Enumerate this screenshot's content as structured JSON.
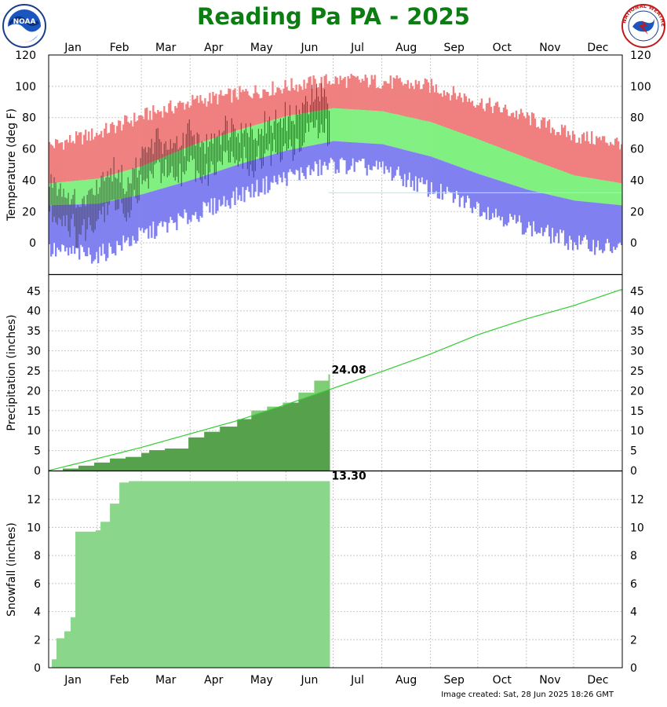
{
  "title": "Reading Pa PA - 2025",
  "footer": "Image created: Sat, 28 Jun 2025 18:26 GMT",
  "logos": {
    "left": "noaa-logo",
    "right": "nws-logo"
  },
  "colors": {
    "title": "#0b7d12",
    "record_high": "#f08080",
    "normal_band": "#80f080",
    "record_low": "#8080f0",
    "observed_temp": "#3f3f3f",
    "precip_observed": "#56a14c",
    "precip_excess": "#b8a39c",
    "snow": "#8ad68a",
    "normal_line": "#33cc33"
  },
  "months": [
    "Jan",
    "Feb",
    "Mar",
    "Apr",
    "May",
    "Jun",
    "Jul",
    "Aug",
    "Sep",
    "Oct",
    "Nov",
    "Dec"
  ],
  "chart_data": [
    {
      "type": "area",
      "ylabel": "Temperature (deg F)",
      "ylim": [
        -20,
        120
      ],
      "yticks": [
        0,
        20,
        40,
        60,
        80,
        100,
        120
      ],
      "grid": true,
      "x_unit": "day of year",
      "normal_high": [
        [
          1,
          38
        ],
        [
          32,
          41
        ],
        [
          60,
          49
        ],
        [
          91,
          62
        ],
        [
          121,
          72
        ],
        [
          152,
          81
        ],
        [
          182,
          86
        ],
        [
          213,
          84
        ],
        [
          244,
          77
        ],
        [
          274,
          66
        ],
        [
          305,
          54
        ],
        [
          335,
          43
        ],
        [
          365,
          38
        ]
      ],
      "normal_low": [
        [
          1,
          24
        ],
        [
          32,
          25
        ],
        [
          60,
          31
        ],
        [
          91,
          40
        ],
        [
          121,
          50
        ],
        [
          152,
          59
        ],
        [
          182,
          65
        ],
        [
          213,
          63
        ],
        [
          244,
          55
        ],
        [
          274,
          44
        ],
        [
          305,
          34
        ],
        [
          335,
          27
        ],
        [
          365,
          24
        ]
      ],
      "record_high": [
        [
          1,
          62
        ],
        [
          32,
          70
        ],
        [
          60,
          81
        ],
        [
          91,
          90
        ],
        [
          121,
          95
        ],
        [
          152,
          100
        ],
        [
          182,
          104
        ],
        [
          213,
          103
        ],
        [
          244,
          100
        ],
        [
          274,
          90
        ],
        [
          305,
          80
        ],
        [
          335,
          68
        ],
        [
          365,
          64
        ]
      ],
      "record_low": [
        [
          1,
          -5
        ],
        [
          32,
          -8
        ],
        [
          60,
          5
        ],
        [
          91,
          17
        ],
        [
          121,
          30
        ],
        [
          152,
          42
        ],
        [
          182,
          50
        ],
        [
          213,
          47
        ],
        [
          244,
          34
        ],
        [
          274,
          23
        ],
        [
          305,
          10
        ],
        [
          335,
          0
        ],
        [
          365,
          -4
        ]
      ],
      "observed_through_day": 179,
      "observed_keypoints": [
        [
          1,
          30
        ],
        [
          10,
          25
        ],
        [
          20,
          14
        ],
        [
          30,
          26
        ],
        [
          40,
          38
        ],
        [
          50,
          28
        ],
        [
          60,
          45
        ],
        [
          70,
          58
        ],
        [
          80,
          48
        ],
        [
          90,
          60
        ],
        [
          100,
          52
        ],
        [
          110,
          64
        ],
        [
          120,
          66
        ],
        [
          130,
          60
        ],
        [
          140,
          66
        ],
        [
          150,
          70
        ],
        [
          160,
          72
        ],
        [
          170,
          85
        ],
        [
          179,
          80
        ]
      ]
    },
    {
      "type": "area",
      "ylabel": "Precipitation (inches)",
      "ylim": [
        0,
        49
      ],
      "yticks": [
        0,
        5,
        10,
        15,
        20,
        25,
        30,
        35,
        40,
        45
      ],
      "grid": true,
      "annotation": "24.08",
      "normal_cumulative": [
        [
          1,
          0
        ],
        [
          32,
          3.0
        ],
        [
          60,
          5.8
        ],
        [
          91,
          9.2
        ],
        [
          121,
          12.5
        ],
        [
          152,
          16.5
        ],
        [
          182,
          20.6
        ],
        [
          213,
          24.8
        ],
        [
          244,
          29.2
        ],
        [
          274,
          34.0
        ],
        [
          305,
          38.0
        ],
        [
          335,
          41.3
        ],
        [
          365,
          45.3
        ]
      ],
      "observed_cumulative": [
        [
          1,
          0
        ],
        [
          10,
          0.5
        ],
        [
          20,
          1.2
        ],
        [
          30,
          2.0
        ],
        [
          40,
          3.0
        ],
        [
          50,
          3.4
        ],
        [
          60,
          4.4
        ],
        [
          65,
          5.1
        ],
        [
          75,
          5.5
        ],
        [
          90,
          8.3
        ],
        [
          100,
          9.7
        ],
        [
          110,
          11.0
        ],
        [
          121,
          12.9
        ],
        [
          130,
          15.0
        ],
        [
          140,
          16.0
        ],
        [
          150,
          17.0
        ],
        [
          160,
          19.5
        ],
        [
          170,
          22.5
        ],
        [
          179,
          24.08
        ]
      ]
    },
    {
      "type": "area",
      "ylabel": "Snowfall (inches)",
      "ylim": [
        0,
        14
      ],
      "yticks": [
        0,
        2,
        4,
        6,
        8,
        10,
        12
      ],
      "grid": true,
      "annotation": "13.30",
      "observed_cumulative": [
        [
          1,
          0
        ],
        [
          3,
          0.6
        ],
        [
          6,
          2.1
        ],
        [
          11,
          2.6
        ],
        [
          15,
          3.6
        ],
        [
          18,
          9.7
        ],
        [
          31,
          9.8
        ],
        [
          34,
          10.4
        ],
        [
          40,
          11.7
        ],
        [
          46,
          13.2
        ],
        [
          52,
          13.3
        ],
        [
          179,
          13.3
        ]
      ]
    }
  ]
}
